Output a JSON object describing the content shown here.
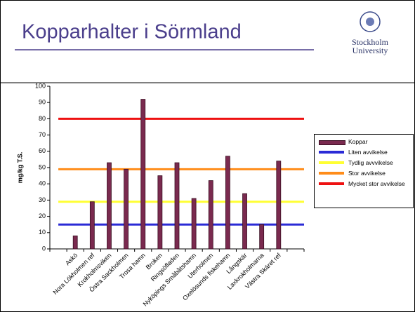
{
  "title": "Kopparhalter i Sörmland",
  "logo": {
    "lines": [
      "Stockholm",
      "University"
    ]
  },
  "chart_data": {
    "type": "bar",
    "categories": [
      null,
      "Askö",
      "Nora Lökholmen ref",
      "Krokholmsviken",
      "Östra Sackholmen",
      "Trosa hamn",
      "Broken",
      "Ringsöfladen",
      "Nyköpings Småbåtshamn",
      "Uterholmen",
      "Oxelösunds fiskehamn",
      "Långskär",
      "Laxkrokholmarna",
      "Västra Skäret ref",
      null
    ],
    "series": [
      {
        "name": "Koppar",
        "color": "#7a2a4f",
        "values": [
          null,
          8,
          29,
          53,
          49,
          92,
          45,
          53,
          31,
          42,
          57,
          34,
          15,
          54,
          null
        ]
      }
    ],
    "reference_lines": [
      {
        "name": "Liten avvikelse",
        "color": "#2b2bd6",
        "value": 15
      },
      {
        "name": "Tydlig avvvikelse",
        "color": "#ffff33",
        "value": 29
      },
      {
        "name": "Stor avvikelse",
        "color": "#ff8c1a",
        "value": 49
      },
      {
        "name": "Mycket stor avvikelse",
        "color": "#ee1111",
        "value": 80
      }
    ],
    "ylabel": "mg/kg T.S.",
    "ylim": [
      0,
      100
    ],
    "yticks": [
      0,
      10,
      20,
      30,
      40,
      50,
      60,
      70,
      80,
      90,
      100
    ]
  }
}
